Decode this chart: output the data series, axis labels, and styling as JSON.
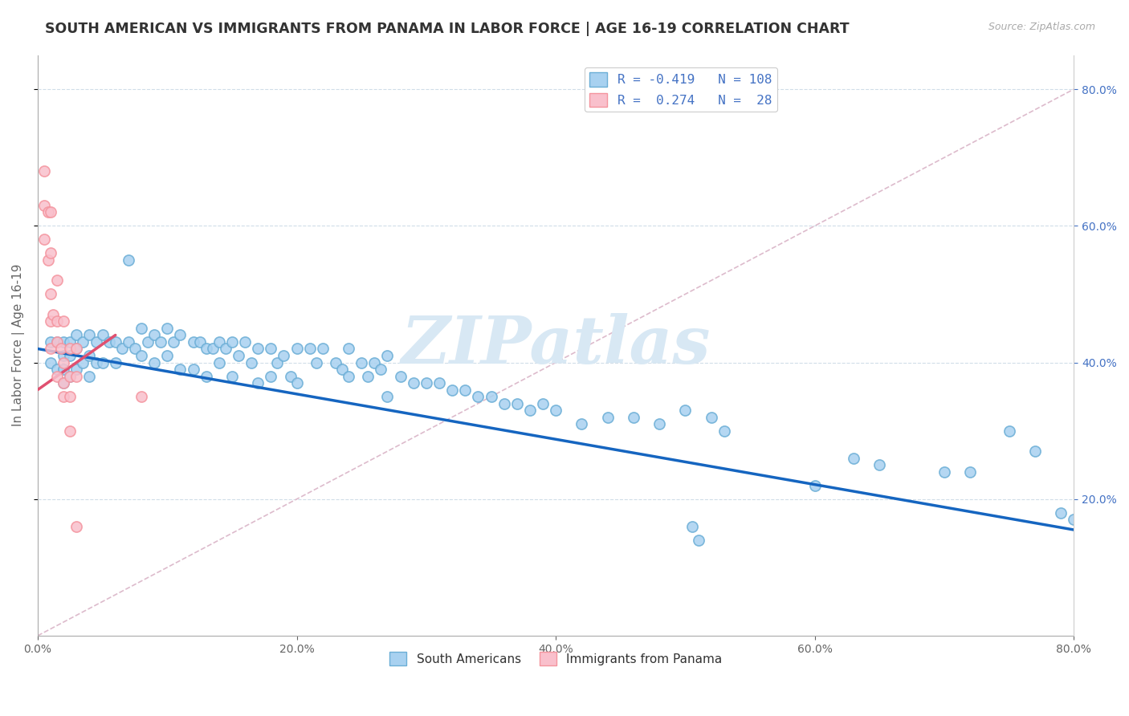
{
  "title": "SOUTH AMERICAN VS IMMIGRANTS FROM PANAMA IN LABOR FORCE | AGE 16-19 CORRELATION CHART",
  "source_text": "Source: ZipAtlas.com",
  "ylabel": "In Labor Force | Age 16-19",
  "xlim": [
    0.0,
    0.8
  ],
  "ylim": [
    0.0,
    0.85
  ],
  "xtick_vals": [
    0.0,
    0.2,
    0.4,
    0.6,
    0.8
  ],
  "ytick_vals": [
    0.2,
    0.4,
    0.6,
    0.8
  ],
  "blue_color": "#a8d1f0",
  "blue_edge_color": "#6baed6",
  "pink_color": "#f9c0cc",
  "pink_edge_color": "#f4949e",
  "line_blue": "#1565c0",
  "line_pink": "#e05070",
  "diag_color": "#ddbbcc",
  "blue_scatter_x": [
    0.01,
    0.01,
    0.015,
    0.015,
    0.02,
    0.02,
    0.02,
    0.02,
    0.025,
    0.025,
    0.025,
    0.03,
    0.03,
    0.03,
    0.035,
    0.035,
    0.04,
    0.04,
    0.04,
    0.045,
    0.045,
    0.05,
    0.05,
    0.055,
    0.06,
    0.06,
    0.065,
    0.07,
    0.07,
    0.075,
    0.08,
    0.08,
    0.085,
    0.09,
    0.09,
    0.095,
    0.1,
    0.1,
    0.105,
    0.11,
    0.11,
    0.12,
    0.12,
    0.125,
    0.13,
    0.13,
    0.135,
    0.14,
    0.14,
    0.145,
    0.15,
    0.15,
    0.155,
    0.16,
    0.165,
    0.17,
    0.17,
    0.18,
    0.18,
    0.185,
    0.19,
    0.195,
    0.2,
    0.2,
    0.21,
    0.215,
    0.22,
    0.23,
    0.235,
    0.24,
    0.24,
    0.25,
    0.255,
    0.26,
    0.265,
    0.27,
    0.27,
    0.28,
    0.29,
    0.3,
    0.31,
    0.32,
    0.33,
    0.34,
    0.35,
    0.36,
    0.37,
    0.38,
    0.39,
    0.4,
    0.42,
    0.44,
    0.46,
    0.48,
    0.5,
    0.505,
    0.51,
    0.52,
    0.53,
    0.6,
    0.63,
    0.65,
    0.7,
    0.72,
    0.75,
    0.77,
    0.79,
    0.8
  ],
  "blue_scatter_y": [
    0.43,
    0.4,
    0.43,
    0.39,
    0.43,
    0.41,
    0.39,
    0.37,
    0.43,
    0.41,
    0.38,
    0.44,
    0.42,
    0.39,
    0.43,
    0.4,
    0.44,
    0.41,
    0.38,
    0.43,
    0.4,
    0.44,
    0.4,
    0.43,
    0.43,
    0.4,
    0.42,
    0.55,
    0.43,
    0.42,
    0.45,
    0.41,
    0.43,
    0.44,
    0.4,
    0.43,
    0.45,
    0.41,
    0.43,
    0.44,
    0.39,
    0.43,
    0.39,
    0.43,
    0.42,
    0.38,
    0.42,
    0.43,
    0.4,
    0.42,
    0.43,
    0.38,
    0.41,
    0.43,
    0.4,
    0.42,
    0.37,
    0.42,
    0.38,
    0.4,
    0.41,
    0.38,
    0.42,
    0.37,
    0.42,
    0.4,
    0.42,
    0.4,
    0.39,
    0.42,
    0.38,
    0.4,
    0.38,
    0.4,
    0.39,
    0.41,
    0.35,
    0.38,
    0.37,
    0.37,
    0.37,
    0.36,
    0.36,
    0.35,
    0.35,
    0.34,
    0.34,
    0.33,
    0.34,
    0.33,
    0.31,
    0.32,
    0.32,
    0.31,
    0.33,
    0.16,
    0.14,
    0.32,
    0.3,
    0.22,
    0.26,
    0.25,
    0.24,
    0.24,
    0.3,
    0.27,
    0.18,
    0.17
  ],
  "pink_scatter_x": [
    0.005,
    0.005,
    0.005,
    0.008,
    0.008,
    0.01,
    0.01,
    0.01,
    0.01,
    0.01,
    0.012,
    0.015,
    0.015,
    0.015,
    0.015,
    0.018,
    0.02,
    0.02,
    0.02,
    0.02,
    0.025,
    0.025,
    0.025,
    0.025,
    0.03,
    0.03,
    0.03,
    0.08
  ],
  "pink_scatter_y": [
    0.68,
    0.63,
    0.58,
    0.62,
    0.55,
    0.62,
    0.56,
    0.5,
    0.46,
    0.42,
    0.47,
    0.52,
    0.46,
    0.43,
    0.38,
    0.42,
    0.46,
    0.4,
    0.37,
    0.35,
    0.42,
    0.38,
    0.35,
    0.3,
    0.42,
    0.38,
    0.16,
    0.35
  ],
  "blue_line_x": [
    0.0,
    0.8
  ],
  "blue_line_y": [
    0.42,
    0.155
  ],
  "pink_line_x": [
    0.0,
    0.06
  ],
  "pink_line_y": [
    0.36,
    0.44
  ],
  "diag_line_x": [
    0.0,
    0.8
  ],
  "diag_line_y": [
    0.0,
    0.8
  ],
  "legend1_text": "R = -0.419   N = 108",
  "legend2_text": "R =  0.274   N =  28",
  "legend_label1": "South Americans",
  "legend_label2": "Immigrants from Panama",
  "text_color_blue": "#4472c4",
  "text_color_gray": "#666666",
  "watermark_color": "#d8e8f4",
  "watermark_text": "ZIPatlas"
}
